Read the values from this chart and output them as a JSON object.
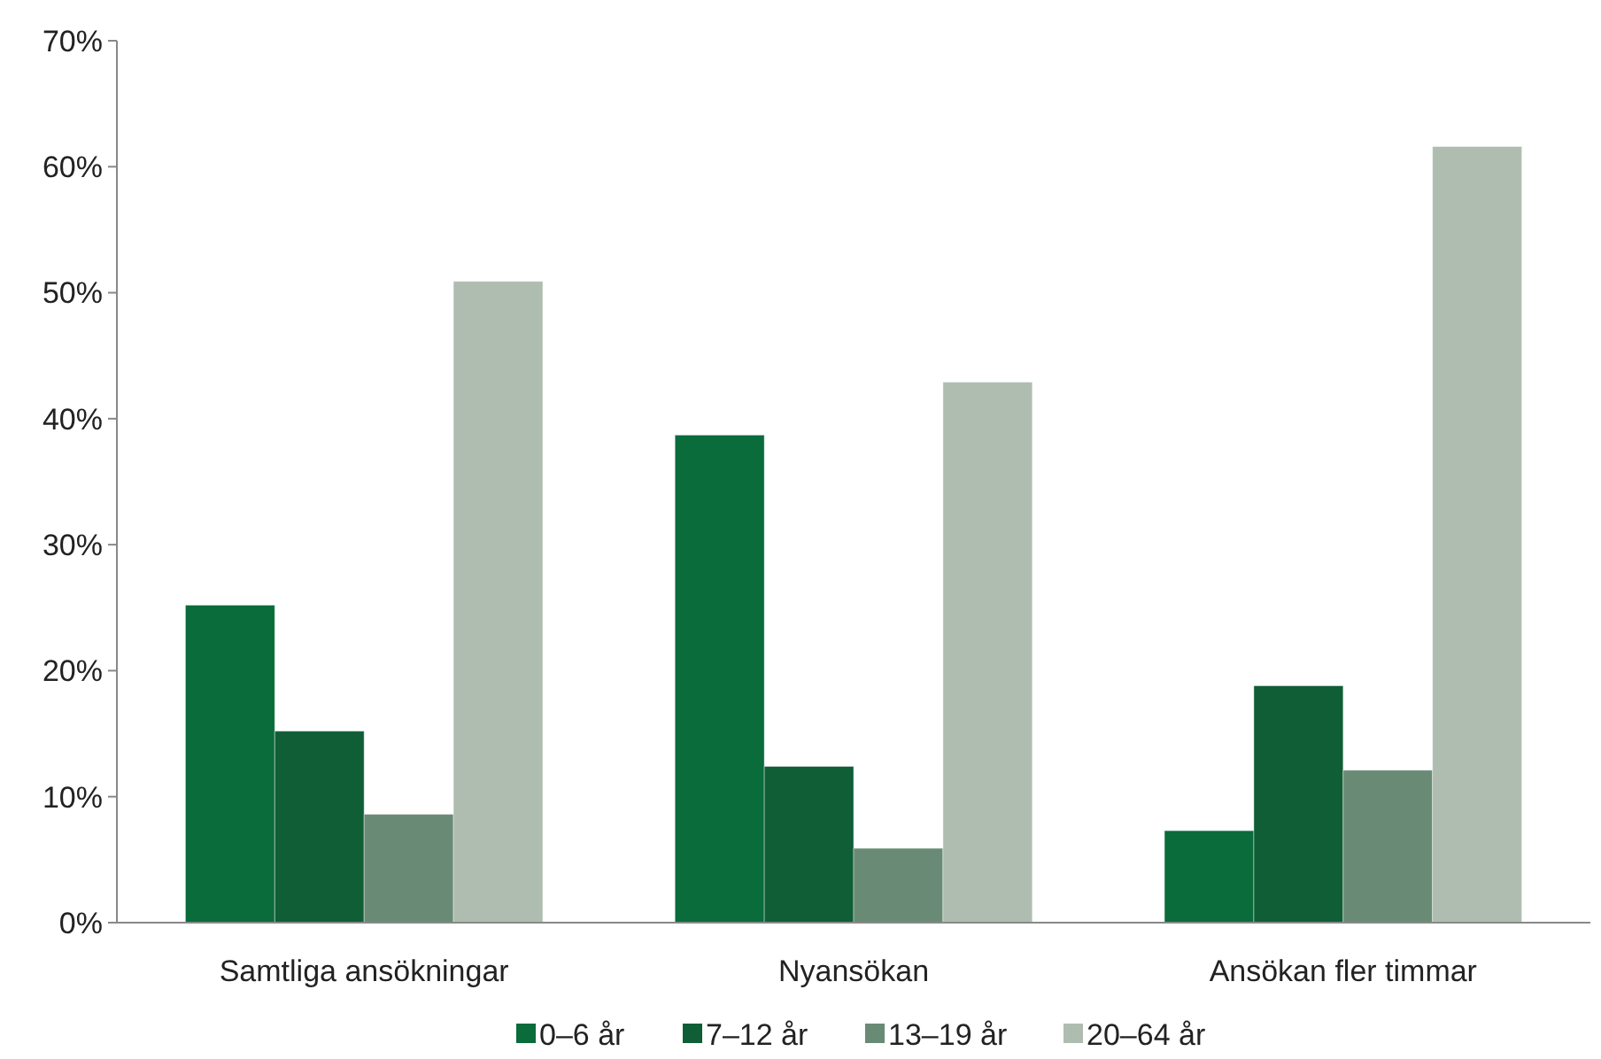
{
  "chart_data": {
    "type": "bar",
    "categories": [
      "Samtliga ansökningar",
      "Nyansökan",
      "Ansökan fler timmar"
    ],
    "series": [
      {
        "name": "0–6 år",
        "color": "#0a6b3b",
        "values": [
          25.2,
          38.7,
          7.3
        ]
      },
      {
        "name": "7–12 år",
        "color": "#0f5e36",
        "values": [
          15.2,
          12.4,
          18.8
        ]
      },
      {
        "name": "13–19 år",
        "color": "#698b75",
        "values": [
          8.6,
          5.9,
          12.1
        ]
      },
      {
        "name": "20–64 år",
        "color": "#afbdb1",
        "values": [
          50.9,
          42.9,
          61.6
        ]
      }
    ],
    "ylim": [
      0,
      70
    ],
    "yticks": [
      {
        "value": 0,
        "label": "0%"
      },
      {
        "value": 10,
        "label": "10%"
      },
      {
        "value": 20,
        "label": "20%"
      },
      {
        "value": 30,
        "label": "30%"
      },
      {
        "value": 40,
        "label": "40%"
      },
      {
        "value": 50,
        "label": "50%"
      },
      {
        "value": 60,
        "label": "60%"
      },
      {
        "value": 70,
        "label": "70%"
      }
    ],
    "grid": false,
    "legend": "bottom"
  }
}
